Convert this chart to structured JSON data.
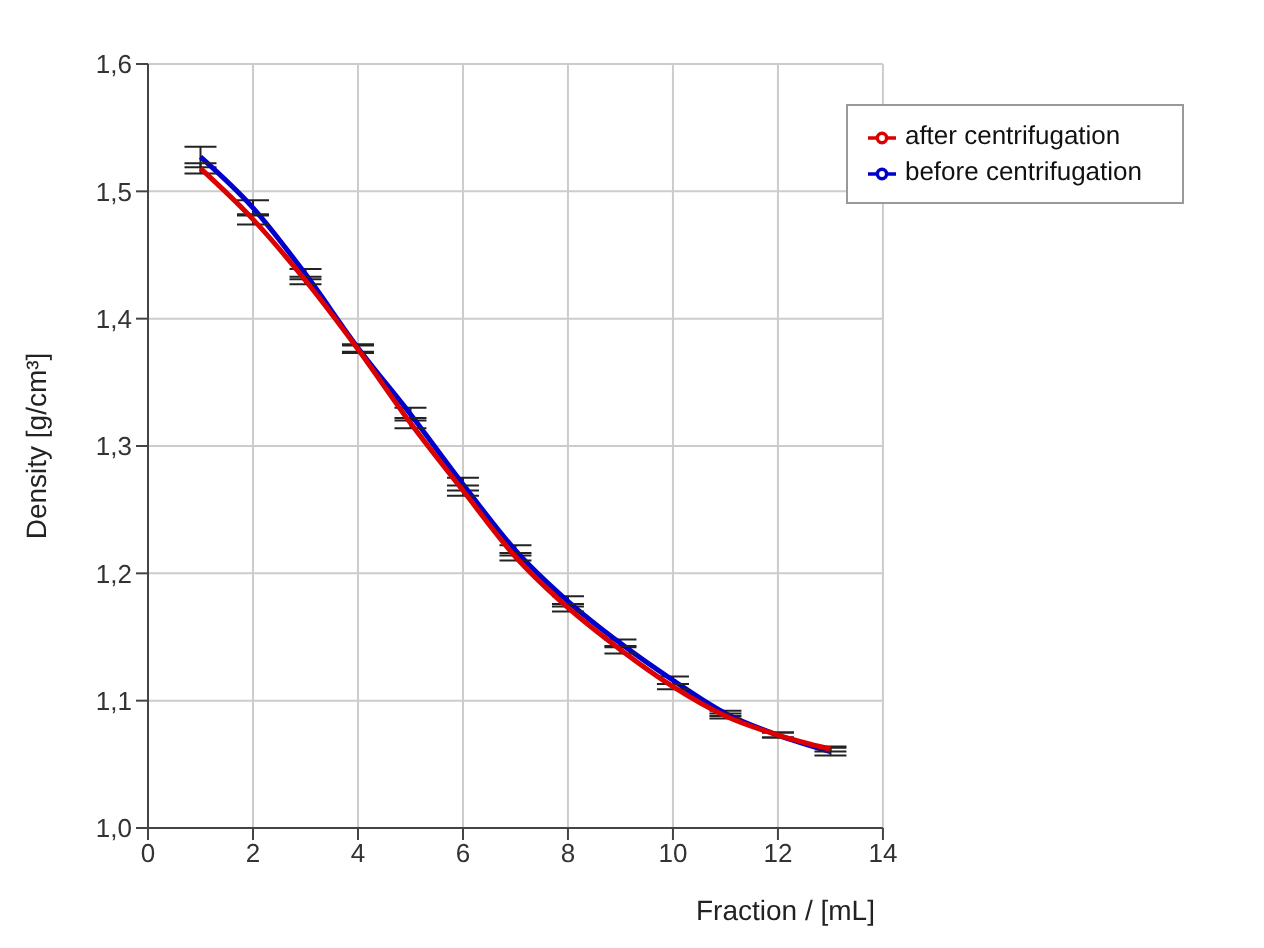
{
  "chart_data": {
    "type": "line",
    "xlabel": "Fraction / [mL]",
    "ylabel": "Density [g/cm³]",
    "x": [
      1,
      2,
      3,
      4,
      5,
      6,
      7,
      8,
      9,
      10,
      11,
      12,
      13
    ],
    "series": [
      {
        "name": "before centrifugation",
        "color": "#0000cc",
        "values": [
          1.527,
          1.487,
          1.435,
          1.377,
          1.325,
          1.27,
          1.218,
          1.178,
          1.145,
          1.116,
          1.09,
          1.073,
          1.06
        ],
        "errors": [
          0.008,
          0.006,
          0.004,
          0.003,
          0.005,
          0.005,
          0.004,
          0.004,
          0.003,
          0.003,
          0.002,
          0.002,
          0.003
        ]
      },
      {
        "name": "after centrifugation",
        "color": "#dd0000",
        "values": [
          1.518,
          1.478,
          1.43,
          1.376,
          1.318,
          1.265,
          1.213,
          1.173,
          1.14,
          1.111,
          1.088,
          1.073,
          1.062
        ],
        "errors": [
          0.004,
          0.004,
          0.003,
          0.003,
          0.004,
          0.004,
          0.003,
          0.003,
          0.003,
          0.002,
          0.002,
          0.002,
          0.002
        ]
      }
    ],
    "xlim": [
      0,
      14
    ],
    "xticks": [
      0,
      2,
      4,
      6,
      8,
      10,
      12,
      14
    ],
    "ylim": [
      1.0,
      1.6
    ],
    "yticks": [
      {
        "value": 1.0,
        "label": "1,0"
      },
      {
        "value": 1.1,
        "label": "1,1"
      },
      {
        "value": 1.2,
        "label": "1,2"
      },
      {
        "value": 1.3,
        "label": "1,3"
      },
      {
        "value": 1.4,
        "label": "1,4"
      },
      {
        "value": 1.5,
        "label": "1,5"
      },
      {
        "value": 1.6,
        "label": "1,6"
      }
    ],
    "grid": true,
    "legend": "top right",
    "marker": "none",
    "line_style": "solid"
  }
}
